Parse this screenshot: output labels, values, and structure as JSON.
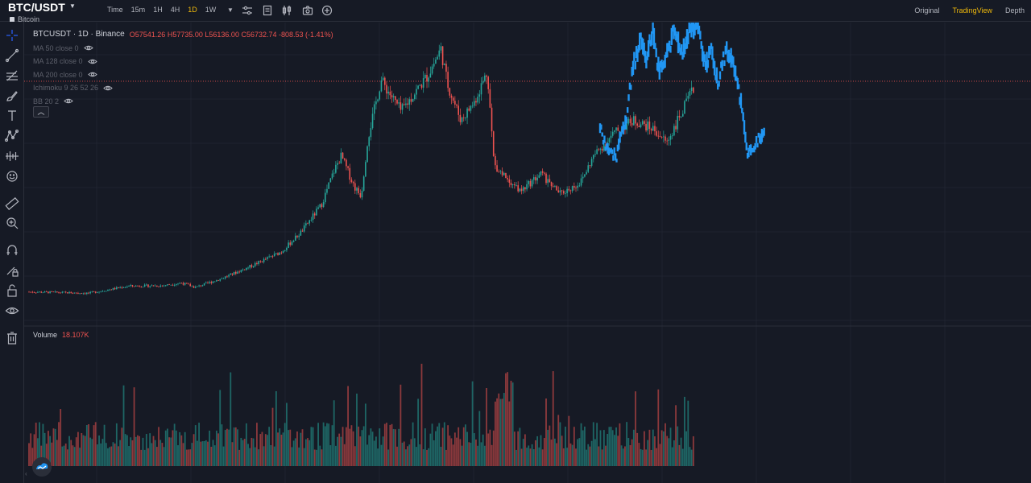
{
  "header": {
    "symbol": "BTC/USDT",
    "coin_name": "Bitcoin",
    "intervals": [
      "Time",
      "15m",
      "1H",
      "4H",
      "1D",
      "1W"
    ],
    "active_interval": "1D",
    "views": [
      "Original",
      "TradingView",
      "Depth"
    ],
    "active_view": "TradingView"
  },
  "legend": {
    "symbol_line": "BTCUSDT · 1D · Binance",
    "o_label": "O",
    "o_value": "57541.26",
    "h_label": "H",
    "h_value": "57735.00",
    "l_label": "L",
    "l_value": "56136.00",
    "c_label": "C",
    "c_value": "56732.74",
    "change": "-808.53 (-1.41%)",
    "indicators": [
      "MA 50 close 0",
      "MA 128 close 0",
      "MA 200 close 0",
      "Ichimoku 9 26 52 26",
      "BB 20 2"
    ]
  },
  "volume": {
    "label": "Volume",
    "value": "18.107K"
  },
  "colors": {
    "up": "#26a69a",
    "down": "#ef5350",
    "overlay": "#2196f3",
    "accent": "#f0b90b",
    "background": "#161a25"
  },
  "icons": {
    "toolbar": [
      "indicator-settings-icon",
      "templates-icon",
      "chart-type-icon",
      "screenshot-icon",
      "add-icon"
    ],
    "sidebar": [
      "crosshair-icon",
      "trend-line-icon",
      "fib-icon",
      "brush-icon",
      "text-icon",
      "pattern-icon",
      "prediction-icon",
      "emoji-icon",
      "ruler-icon",
      "zoom-in-icon",
      "magnet-icon",
      "lock-drawing-icon",
      "unlock-icon",
      "eye-icon",
      "trash-icon"
    ]
  },
  "chart_data": {
    "type": "candlestick",
    "price_path": [
      [
        0,
        9500
      ],
      [
        0.09,
        9200
      ],
      [
        0.15,
        10800
      ],
      [
        0.2,
        10900
      ],
      [
        0.23,
        11500
      ],
      [
        0.25,
        10500
      ],
      [
        0.29,
        12500
      ],
      [
        0.33,
        15000
      ],
      [
        0.38,
        18500
      ],
      [
        0.41,
        23000
      ],
      [
        0.44,
        29000
      ],
      [
        0.46,
        37000
      ],
      [
        0.47,
        40000
      ],
      [
        0.49,
        33000
      ],
      [
        0.5,
        31000
      ],
      [
        0.51,
        44000
      ],
      [
        0.53,
        57000
      ],
      [
        0.56,
        50000
      ],
      [
        0.6,
        58000
      ],
      [
        0.62,
        64000
      ],
      [
        0.63,
        56000
      ],
      [
        0.65,
        48000
      ],
      [
        0.67,
        52000
      ],
      [
        0.69,
        59000
      ],
      [
        0.7,
        38000
      ],
      [
        0.72,
        35000
      ],
      [
        0.74,
        32000
      ],
      [
        0.77,
        36000
      ],
      [
        0.8,
        31500
      ],
      [
        0.83,
        34000
      ],
      [
        0.85,
        40000
      ],
      [
        0.88,
        45000
      ],
      [
        0.91,
        48000
      ],
      [
        0.94,
        46000
      ],
      [
        0.96,
        43000
      ],
      [
        1,
        55000
      ]
    ],
    "overlay_path": [
      [
        0,
        46000
      ],
      [
        0.05,
        41000
      ],
      [
        0.1,
        40000
      ],
      [
        0.12,
        44000
      ],
      [
        0.16,
        48000
      ],
      [
        0.2,
        60000
      ],
      [
        0.25,
        66000
      ],
      [
        0.28,
        61000
      ],
      [
        0.32,
        68000
      ],
      [
        0.36,
        59000
      ],
      [
        0.4,
        62000
      ],
      [
        0.45,
        68000
      ],
      [
        0.5,
        63000
      ],
      [
        0.55,
        68500
      ],
      [
        0.6,
        69000
      ],
      [
        0.64,
        60000
      ],
      [
        0.68,
        64000
      ],
      [
        0.72,
        56000
      ],
      [
        0.77,
        64000
      ],
      [
        0.81,
        61000
      ],
      [
        0.86,
        52000
      ],
      [
        0.9,
        40000
      ],
      [
        0.93,
        42000
      ],
      [
        1,
        45000
      ]
    ],
    "price_scale": [
      4000,
      69000
    ],
    "last_close": 56732.74
  }
}
